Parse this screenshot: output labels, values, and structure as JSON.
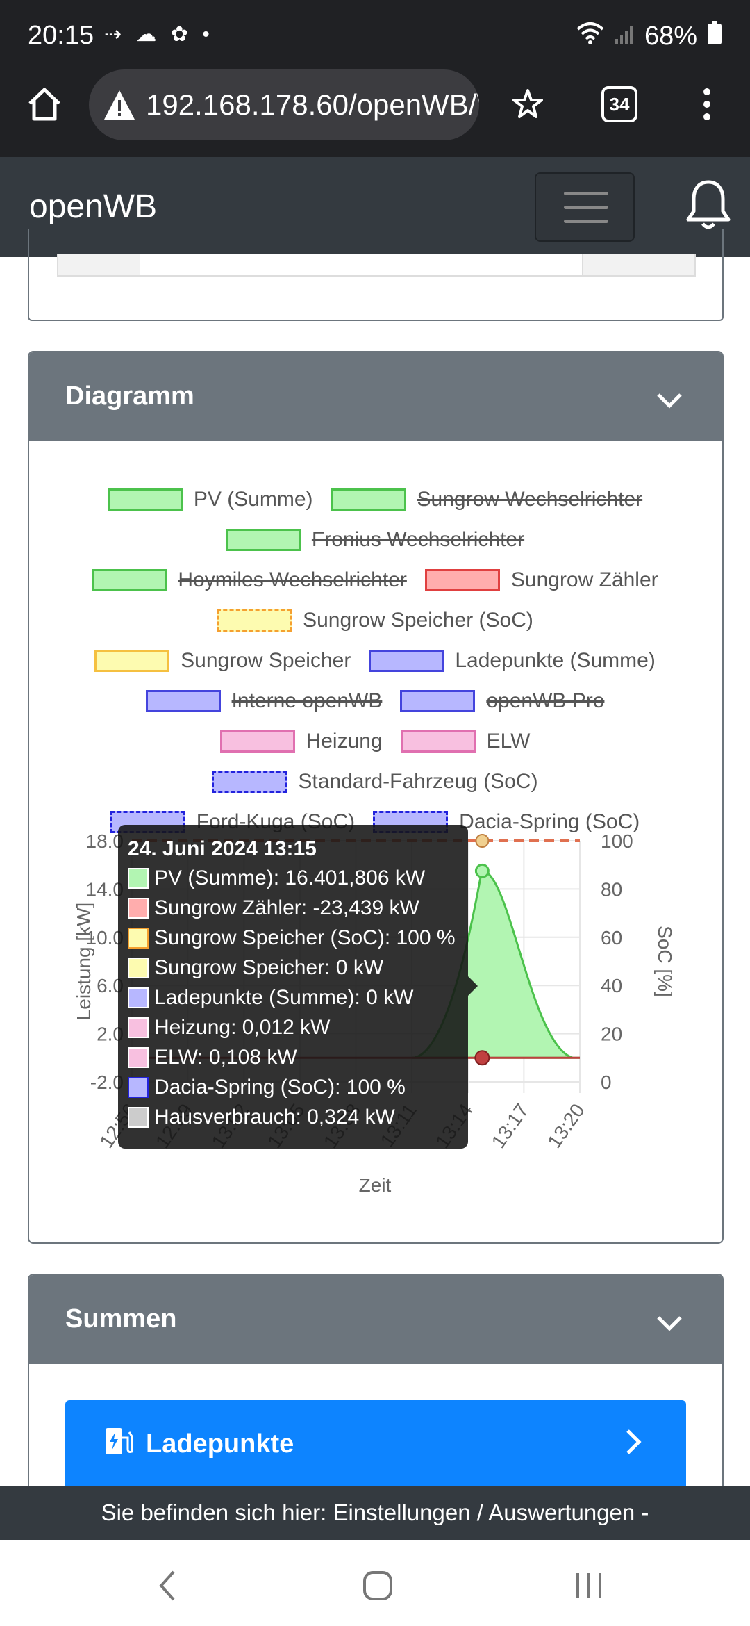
{
  "status_bar": {
    "time": "20:15",
    "battery": "68%"
  },
  "browser": {
    "url": "192.168.178.60/openWB/\\",
    "tab_count": "34"
  },
  "navbar": {
    "brand": "openWB"
  },
  "diagram_card": {
    "title": "Diagramm"
  },
  "legend": [
    {
      "label": "PV (Summe)",
      "fill": "#b2f5b2",
      "border": "#4cc24c",
      "struck": false,
      "dashed": false
    },
    {
      "label": "Sungrow Wechselrichter",
      "fill": "#b2f5b2",
      "border": "#4cc24c",
      "struck": true,
      "dashed": false
    },
    {
      "label": "Fronius Wechselrichter",
      "fill": "#b2f5b2",
      "border": "#4cc24c",
      "struck": true,
      "dashed": false
    },
    {
      "label": "Hoymiles Wechselrichter",
      "fill": "#b2f5b2",
      "border": "#4cc24c",
      "struck": true,
      "dashed": false
    },
    {
      "label": "Sungrow Zähler",
      "fill": "#ffadad",
      "border": "#e04040",
      "struck": false,
      "dashed": false
    },
    {
      "label": "Sungrow Speicher (SoC)",
      "fill": "#fdfbb0",
      "border": "#f5a030",
      "struck": false,
      "dashed": true
    },
    {
      "label": "Sungrow Speicher",
      "fill": "#fdfbb0",
      "border": "#f5c040",
      "struck": false,
      "dashed": false
    },
    {
      "label": "Ladepunkte (Summe)",
      "fill": "#b7b7ff",
      "border": "#4444dd",
      "struck": false,
      "dashed": false
    },
    {
      "label": "Interne openWB",
      "fill": "#b7b7ff",
      "border": "#4444dd",
      "struck": true,
      "dashed": false
    },
    {
      "label": "openWB Pro",
      "fill": "#b7b7ff",
      "border": "#4444dd",
      "struck": true,
      "dashed": false
    },
    {
      "label": "Heizung",
      "fill": "#f8c0e0",
      "border": "#e070b0",
      "struck": false,
      "dashed": false
    },
    {
      "label": "ELW",
      "fill": "#f8c0e0",
      "border": "#e070b0",
      "struck": false,
      "dashed": false
    },
    {
      "label": "Standard-Fahrzeug (SoC)",
      "fill": "#b7b7ff",
      "border": "#2222dd",
      "struck": false,
      "dashed": true
    },
    {
      "label": "Ford-Kuga (SoC)",
      "fill": "#b7b7ff",
      "border": "#2222dd",
      "struck": false,
      "dashed": true
    },
    {
      "label": "Dacia-Spring (SoC)",
      "fill": "#b7b7ff",
      "border": "#2222dd",
      "struck": false,
      "dashed": true
    }
  ],
  "chart_data": {
    "type": "area",
    "title": "",
    "xlabel": "Zeit",
    "ylabel": "Leistung [kW]",
    "y2label": "SoC [%]",
    "x": [
      "12:56",
      "12:59",
      "13:02",
      "13:05",
      "13:08",
      "13:11",
      "13:14",
      "13:17",
      "13:20"
    ],
    "ylim": [
      -2.0,
      18.0
    ],
    "y_ticks": [
      "-2.0",
      "2.0",
      "6.0",
      "10.0",
      "14.0",
      "18.0"
    ],
    "y2lim": [
      0,
      100
    ],
    "y2_ticks": [
      "0",
      "20",
      "40",
      "60",
      "80",
      "100"
    ],
    "grid": true,
    "series": [
      {
        "name": "PV (Summe)",
        "values": [
          0,
          0,
          0,
          0,
          0,
          0,
          4.2,
          15.5,
          0
        ],
        "color": "#4cc24c"
      },
      {
        "name": "Sungrow Zähler",
        "values": [
          0,
          0,
          0,
          0,
          0,
          0,
          0,
          0,
          0
        ],
        "color": "#c04040"
      },
      {
        "name": "Sungrow Speicher (SoC)",
        "values": [
          100,
          100,
          100,
          100,
          100,
          100,
          100,
          100,
          100
        ],
        "color": "#e07050"
      }
    ]
  },
  "tooltip": {
    "title": "24. Juni 2024 13:15",
    "rows": [
      {
        "text": "PV (Summe): 16.401,806 kW",
        "fill": "#b2f5b2",
        "border": "#ffffff"
      },
      {
        "text": "Sungrow Zähler: -23,439 kW",
        "fill": "#ffadad",
        "border": "#ffffff"
      },
      {
        "text": "Sungrow Speicher (SoC): 100 %",
        "fill": "#fdfbb0",
        "border": "#f5a030"
      },
      {
        "text": "Sungrow Speicher: 0 kW",
        "fill": "#fdfbb0",
        "border": "#ffffff"
      },
      {
        "text": "Ladepunkte (Summe): 0 kW",
        "fill": "#b7b7ff",
        "border": "#ffffff"
      },
      {
        "text": "Heizung: 0,012 kW",
        "fill": "#f8c0e0",
        "border": "#ffffff"
      },
      {
        "text": "ELW: 0,108 kW",
        "fill": "#f8c0e0",
        "border": "#ffffff"
      },
      {
        "text": "Dacia-Spring (SoC): 100 %",
        "fill": "#b7b7ff",
        "border": "#2222dd"
      },
      {
        "text": "Hausverbrauch: 0,324 kW",
        "fill": "#cccccc",
        "border": "#ffffff"
      }
    ]
  },
  "summen_card": {
    "title": "Summen"
  },
  "ladepunkte_button": {
    "label": "Ladepunkte"
  },
  "footer": {
    "breadcrumb": "Sie befinden sich hier: Einstellungen / Auswertungen -"
  }
}
